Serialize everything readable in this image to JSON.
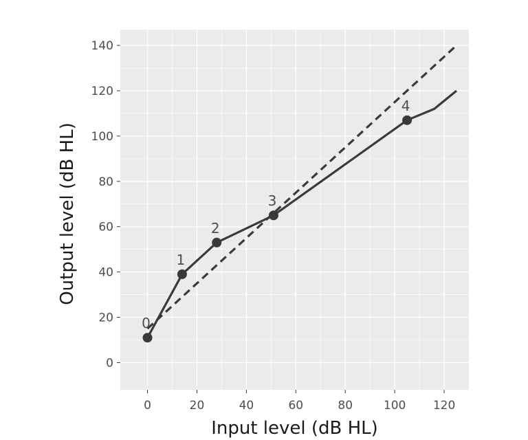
{
  "chart_data": {
    "type": "line",
    "xlabel": "Input level (dB HL)",
    "ylabel": "Output level (dB HL)",
    "xlim": [
      -11,
      130
    ],
    "ylim": [
      -12,
      147
    ],
    "x_ticks": [
      0,
      20,
      40,
      60,
      80,
      100,
      120
    ],
    "y_ticks": [
      0,
      20,
      40,
      60,
      80,
      100,
      120,
      140
    ],
    "grid": true,
    "legend": "none",
    "series": [
      {
        "style": "dashed",
        "color": "#3a3a3a",
        "x": [
          0,
          125
        ],
        "y": [
          15,
          140
        ]
      },
      {
        "style": "solid",
        "color": "#3a3a3a",
        "x": [
          0,
          14,
          28,
          51,
          105,
          116,
          125
        ],
        "y": [
          11,
          39,
          53,
          65,
          107,
          112,
          120
        ]
      }
    ],
    "points": [
      {
        "label": "0",
        "x": 0,
        "y": 11
      },
      {
        "label": "1",
        "x": 14,
        "y": 39
      },
      {
        "label": "2",
        "x": 28,
        "y": 53
      },
      {
        "label": "3",
        "x": 51,
        "y": 65
      },
      {
        "label": "4",
        "x": 105,
        "y": 107
      }
    ],
    "colors": {
      "panel": "#ebebeb",
      "grid": "#ffffff",
      "line": "#3a3a3a",
      "tick": "#4d4d4d"
    }
  }
}
